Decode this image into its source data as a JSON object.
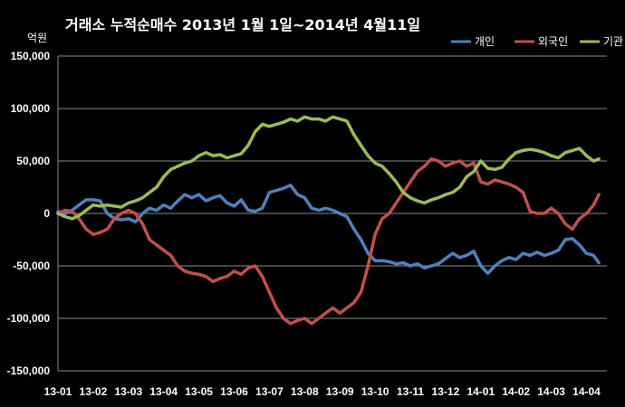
{
  "chart_data": {
    "type": "line",
    "title": "거래소  누적순매수 2013년 1월 1일~2014년 4월11일",
    "unit_label": "억원",
    "ylim": [
      -150000,
      150000
    ],
    "y_ticks": [
      150000,
      100000,
      50000,
      0,
      -50000,
      -100000,
      -150000
    ],
    "y_tick_labels": [
      "150,000",
      "100,000",
      "50,000",
      "0",
      "-50,000",
      "-100,000",
      "-150,000"
    ],
    "x_range": [
      0,
      15.35
    ],
    "x_ticks": [
      0,
      1,
      2,
      3,
      4,
      5,
      6,
      7,
      8,
      9,
      10,
      11,
      12,
      13,
      14,
      15
    ],
    "x_tick_labels": [
      "13-01",
      "13-02",
      "13-03",
      "13-04",
      "13-05",
      "13-06",
      "13-07",
      "13-08",
      "13-09",
      "13-10",
      "13-11",
      "13-12",
      "14-01",
      "14-02",
      "14-03",
      "14-04"
    ],
    "grid": true,
    "legend_position": "top-right",
    "series": [
      {
        "name": "개인",
        "color": "#4f81bd",
        "x": [
          0,
          0.2,
          0.4,
          0.6,
          0.8,
          1.0,
          1.2,
          1.4,
          1.6,
          1.8,
          2.0,
          2.2,
          2.4,
          2.6,
          2.8,
          3.0,
          3.2,
          3.4,
          3.6,
          3.8,
          4.0,
          4.2,
          4.4,
          4.6,
          4.8,
          5.0,
          5.2,
          5.4,
          5.6,
          5.8,
          6.0,
          6.2,
          6.4,
          6.6,
          6.8,
          7.0,
          7.2,
          7.4,
          7.6,
          7.8,
          8.0,
          8.2,
          8.4,
          8.6,
          8.8,
          9.0,
          9.2,
          9.4,
          9.6,
          9.8,
          10.0,
          10.2,
          10.4,
          10.6,
          10.8,
          11.0,
          11.2,
          11.4,
          11.6,
          11.8,
          12.0,
          12.2,
          12.4,
          12.6,
          12.8,
          13.0,
          13.2,
          13.4,
          13.6,
          13.8,
          14.0,
          14.2,
          14.4,
          14.6,
          14.8,
          15.0,
          15.2,
          15.35
        ],
        "values": [
          2000,
          0,
          3000,
          8000,
          13000,
          13000,
          12000,
          0,
          -5000,
          -6000,
          -5000,
          -8000,
          0,
          5000,
          3000,
          8000,
          5000,
          12000,
          18000,
          15000,
          18000,
          12000,
          15000,
          17000,
          10000,
          7000,
          13000,
          3000,
          2000,
          5000,
          20000,
          22000,
          24000,
          27000,
          18000,
          15000,
          5000,
          3000,
          5000,
          3000,
          0,
          -3000,
          -15000,
          -25000,
          -38000,
          -45000,
          -45000,
          -46000,
          -48000,
          -47000,
          -50000,
          -48000,
          -52000,
          -50000,
          -48000,
          -43000,
          -38000,
          -42000,
          -40000,
          -36000,
          -50000,
          -57000,
          -50000,
          -45000,
          -42000,
          -44000,
          -38000,
          -40000,
          -37000,
          -40000,
          -38000,
          -35000,
          -25000,
          -24000,
          -30000,
          -38000,
          -40000,
          -47000
        ]
      },
      {
        "name": "외국인",
        "color": "#c0504d",
        "x": [
          0,
          0.2,
          0.4,
          0.6,
          0.8,
          1.0,
          1.2,
          1.4,
          1.6,
          1.8,
          2.0,
          2.2,
          2.4,
          2.6,
          2.8,
          3.0,
          3.2,
          3.4,
          3.6,
          3.8,
          4.0,
          4.2,
          4.4,
          4.6,
          4.8,
          5.0,
          5.2,
          5.4,
          5.6,
          5.8,
          6.0,
          6.2,
          6.4,
          6.6,
          6.8,
          7.0,
          7.2,
          7.4,
          7.6,
          7.8,
          8.0,
          8.2,
          8.4,
          8.6,
          8.8,
          9.0,
          9.2,
          9.4,
          9.6,
          9.8,
          10.0,
          10.2,
          10.4,
          10.6,
          10.8,
          11.0,
          11.2,
          11.4,
          11.6,
          11.8,
          12.0,
          12.2,
          12.4,
          12.6,
          12.8,
          13.0,
          13.2,
          13.4,
          13.6,
          13.8,
          14.0,
          14.2,
          14.4,
          14.6,
          14.8,
          15.0,
          15.2,
          15.35
        ],
        "values": [
          0,
          3000,
          2000,
          -5000,
          -15000,
          -20000,
          -18000,
          -15000,
          -5000,
          0,
          3000,
          0,
          -10000,
          -25000,
          -30000,
          -35000,
          -40000,
          -50000,
          -55000,
          -57000,
          -58000,
          -60000,
          -65000,
          -62000,
          -60000,
          -55000,
          -58000,
          -52000,
          -50000,
          -60000,
          -75000,
          -90000,
          -100000,
          -105000,
          -102000,
          -100000,
          -105000,
          -100000,
          -95000,
          -90000,
          -95000,
          -90000,
          -85000,
          -75000,
          -50000,
          -20000,
          -5000,
          0,
          10000,
          20000,
          30000,
          40000,
          45000,
          52000,
          50000,
          45000,
          48000,
          50000,
          45000,
          48000,
          30000,
          28000,
          32000,
          30000,
          28000,
          25000,
          20000,
          2000,
          0,
          0,
          5000,
          0,
          -10000,
          -15000,
          -5000,
          0,
          8000,
          18000
        ]
      },
      {
        "name": "기관",
        "color": "#9bbb59",
        "x": [
          0,
          0.2,
          0.4,
          0.6,
          0.8,
          1.0,
          1.2,
          1.4,
          1.6,
          1.8,
          2.0,
          2.2,
          2.4,
          2.6,
          2.8,
          3.0,
          3.2,
          3.4,
          3.6,
          3.8,
          4.0,
          4.2,
          4.4,
          4.6,
          4.8,
          5.0,
          5.2,
          5.4,
          5.6,
          5.8,
          6.0,
          6.2,
          6.4,
          6.6,
          6.8,
          7.0,
          7.2,
          7.4,
          7.6,
          7.8,
          8.0,
          8.2,
          8.4,
          8.6,
          8.8,
          9.0,
          9.2,
          9.4,
          9.6,
          9.8,
          10.0,
          10.2,
          10.4,
          10.6,
          10.8,
          11.0,
          11.2,
          11.4,
          11.6,
          11.8,
          12.0,
          12.2,
          12.4,
          12.6,
          12.8,
          13.0,
          13.2,
          13.4,
          13.6,
          13.8,
          14.0,
          14.2,
          14.4,
          14.6,
          14.8,
          15.0,
          15.2,
          15.35
        ],
        "values": [
          0,
          -3000,
          -5000,
          -2000,
          3000,
          8000,
          7000,
          8000,
          7000,
          6000,
          10000,
          12000,
          15000,
          20000,
          25000,
          35000,
          42000,
          45000,
          48000,
          50000,
          55000,
          58000,
          55000,
          56000,
          53000,
          55000,
          57000,
          65000,
          78000,
          85000,
          83000,
          85000,
          87000,
          90000,
          88000,
          92000,
          90000,
          90000,
          88000,
          92000,
          90000,
          88000,
          75000,
          65000,
          55000,
          48000,
          45000,
          38000,
          30000,
          20000,
          15000,
          12000,
          10000,
          13000,
          15000,
          18000,
          20000,
          25000,
          35000,
          40000,
          50000,
          43000,
          42000,
          44000,
          52000,
          58000,
          60000,
          61000,
          60000,
          58000,
          55000,
          53000,
          58000,
          60000,
          62000,
          55000,
          50000,
          52000
        ]
      }
    ]
  }
}
